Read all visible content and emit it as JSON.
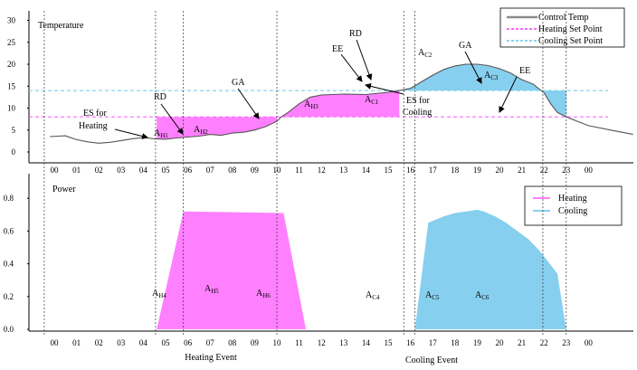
{
  "colors": {
    "heating": "#ff80ff",
    "cooling": "#87cfee",
    "control_temp": "#8a8a8a",
    "heating_setpoint": "#ff66ff",
    "cooling_setpoint": "#88d4ee"
  },
  "chart_data": [
    {
      "type": "line",
      "ylabel": "Temperature",
      "ylim": [
        0,
        33
      ],
      "yticks": [
        "0",
        "5",
        "10",
        "15",
        "20",
        "25",
        "30"
      ],
      "x_labels": [
        "00",
        "01",
        "02",
        "03",
        "04",
        "05",
        "06",
        "07",
        "08",
        "09",
        "10",
        "11",
        "12",
        "13",
        "14",
        "15",
        "16",
        "17",
        "18",
        "19",
        "20",
        "21",
        "22",
        "23",
        "00"
      ],
      "legend": {
        "position": "top-right",
        "items": [
          "Control Temp",
          "Heating Set Point",
          "Cooling Set Point"
        ]
      },
      "heating_setpoint": 8,
      "cooling_setpoint": 14,
      "series": [
        {
          "name": "Control Temp",
          "x": [
            -0.2,
            0.5,
            1.0,
            1.5,
            2.0,
            2.5,
            3.0,
            3.5,
            4.0,
            4.5,
            5.0,
            5.5,
            6.0,
            6.5,
            7.0,
            7.5,
            8.0,
            8.5,
            9.0,
            9.5,
            10.0,
            10.2,
            10.5,
            11.0,
            11.5,
            12.0,
            13.0,
            14.0,
            15.0,
            15.5,
            16.0,
            16.5,
            17.0,
            17.5,
            18.0,
            18.5,
            19.0,
            19.5,
            20.0,
            20.5,
            21.0,
            21.5,
            22.0,
            22.3,
            22.6,
            23.0,
            23.5,
            24.0,
            25.0,
            26.0
          ],
          "values": [
            3.5,
            3.7,
            2.8,
            2.3,
            2.0,
            2.2,
            2.6,
            3.0,
            3.3,
            3.0,
            2.9,
            3.2,
            3.4,
            3.6,
            4.0,
            3.8,
            4.3,
            4.5,
            5.0,
            5.8,
            7.0,
            8.0,
            9.0,
            11.0,
            12.5,
            13.0,
            13.2,
            13.1,
            13.6,
            14.0,
            14.5,
            16.0,
            17.5,
            18.8,
            19.6,
            20.0,
            20.0,
            19.7,
            19.0,
            18.0,
            16.5,
            15.5,
            13.5,
            11.0,
            9.0,
            8.0,
            7.0,
            6.0,
            5.0,
            4.0
          ]
        }
      ],
      "shaded_regions": [
        {
          "label": "A",
          "sub": "H1",
          "kind": "heating"
        },
        {
          "label": "A",
          "sub": "H2",
          "kind": "heating"
        },
        {
          "label": "A",
          "sub": "H3",
          "kind": "heating"
        },
        {
          "label": "A",
          "sub": "C1",
          "kind": "cooling"
        },
        {
          "label": "A",
          "sub": "C2",
          "kind": "cooling"
        },
        {
          "label": "A",
          "sub": "C3",
          "kind": "cooling"
        }
      ],
      "annotations": [
        {
          "text": "ES for"
        },
        {
          "text": "Heating"
        },
        {
          "text": "RD"
        },
        {
          "text": "GA"
        },
        {
          "text": "EE"
        },
        {
          "text": "RD"
        },
        {
          "text": "ES for"
        },
        {
          "text": "Cooling"
        },
        {
          "text": "GA"
        },
        {
          "text": "EE"
        }
      ]
    },
    {
      "type": "area",
      "ylabel": "Power",
      "ylim": [
        0,
        0.9
      ],
      "yticks": [
        "0.0",
        "0.2",
        "0.4",
        "0.6",
        "0.8"
      ],
      "x_labels": [
        "00",
        "01",
        "02",
        "03",
        "04",
        "05",
        "06",
        "07",
        "08",
        "09",
        "10",
        "11",
        "12",
        "13",
        "14",
        "15",
        "16",
        "17",
        "18",
        "19",
        "20",
        "21",
        "22",
        "23",
        "00"
      ],
      "legend": {
        "position": "top-right",
        "items": [
          "Heating",
          "Cooling"
        ]
      },
      "series": [
        {
          "name": "Heating",
          "x": [
            4.6,
            5.8,
            10.3,
            11.3
          ],
          "values": [
            0.0,
            0.72,
            0.71,
            0.0
          ]
        },
        {
          "name": "Cooling",
          "x": [
            16.2,
            16.8,
            17.5,
            18.0,
            18.5,
            19.0,
            19.3,
            19.8,
            20.3,
            20.8,
            21.3,
            21.8,
            22.2,
            22.6,
            23.0
          ],
          "values": [
            0.0,
            0.65,
            0.69,
            0.71,
            0.72,
            0.73,
            0.72,
            0.69,
            0.65,
            0.6,
            0.55,
            0.48,
            0.41,
            0.34,
            0.0
          ]
        }
      ],
      "area_labels": [
        {
          "label": "A",
          "sub": "H4"
        },
        {
          "label": "A",
          "sub": "H5"
        },
        {
          "label": "A",
          "sub": "H6"
        },
        {
          "label": "A",
          "sub": "C4"
        },
        {
          "label": "A",
          "sub": "C5"
        },
        {
          "label": "A",
          "sub": "C6"
        }
      ],
      "events": [
        "Heating Event",
        "Cooling Event"
      ]
    }
  ]
}
